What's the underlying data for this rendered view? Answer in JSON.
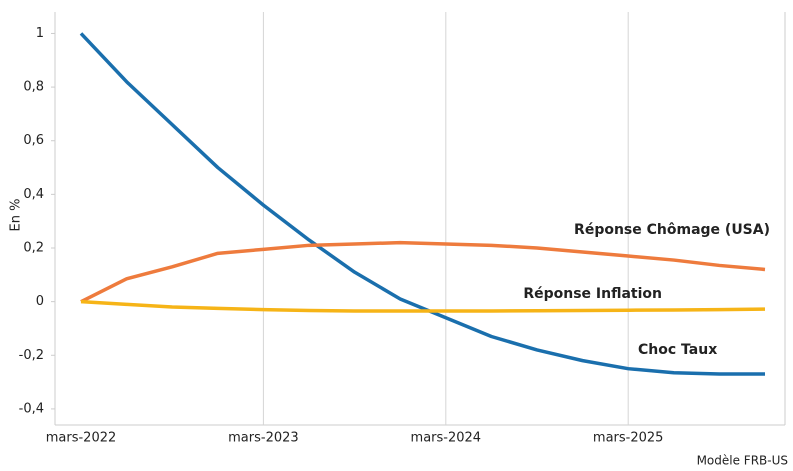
{
  "chart_data": {
    "type": "line",
    "y_label": "En %",
    "source": "Modèle FRB-US",
    "categories": [
      "mars-2022",
      null,
      null,
      null,
      "mars-2023",
      null,
      null,
      null,
      "mars-2024",
      null,
      null,
      null,
      "mars-2025",
      null,
      null,
      null
    ],
    "series": [
      {
        "name": "Choc Taux",
        "color": "#1a6fad",
        "values": [
          1.0,
          0.82,
          0.66,
          0.5,
          0.36,
          0.23,
          0.11,
          0.01,
          -0.06,
          -0.13,
          -0.18,
          -0.22,
          -0.25,
          -0.265,
          -0.27,
          -0.27
        ]
      },
      {
        "name": "Réponse Chômage (USA)",
        "color": "#ee7b3d",
        "values": [
          0,
          0.085,
          0.13,
          0.18,
          0.195,
          0.21,
          0.215,
          0.22,
          0.215,
          0.21,
          0.2,
          0.185,
          0.17,
          0.155,
          0.135,
          0.12
        ]
      },
      {
        "name": "Réponse Inflation",
        "color": "#f6b417",
        "values": [
          0,
          -0.01,
          -0.02,
          -0.025,
          -0.03,
          -0.033,
          -0.035,
          -0.035,
          -0.035,
          -0.035,
          -0.034,
          -0.033,
          -0.032,
          -0.031,
          -0.03,
          -0.028
        ]
      }
    ],
    "ylim": [
      -0.46,
      1.08
    ],
    "yticks": [
      {
        "value": -0.4,
        "label": "-0,4"
      },
      {
        "value": -0.2,
        "label": "-0,2"
      },
      0,
      {
        "value": 0.2,
        "label": "0,2"
      },
      {
        "value": 0.4,
        "label": "0,4"
      },
      {
        "value": 0.6,
        "label": "0,6"
      },
      {
        "value": 0.8,
        "label": "0,8"
      },
      1
    ],
    "grid": true
  }
}
